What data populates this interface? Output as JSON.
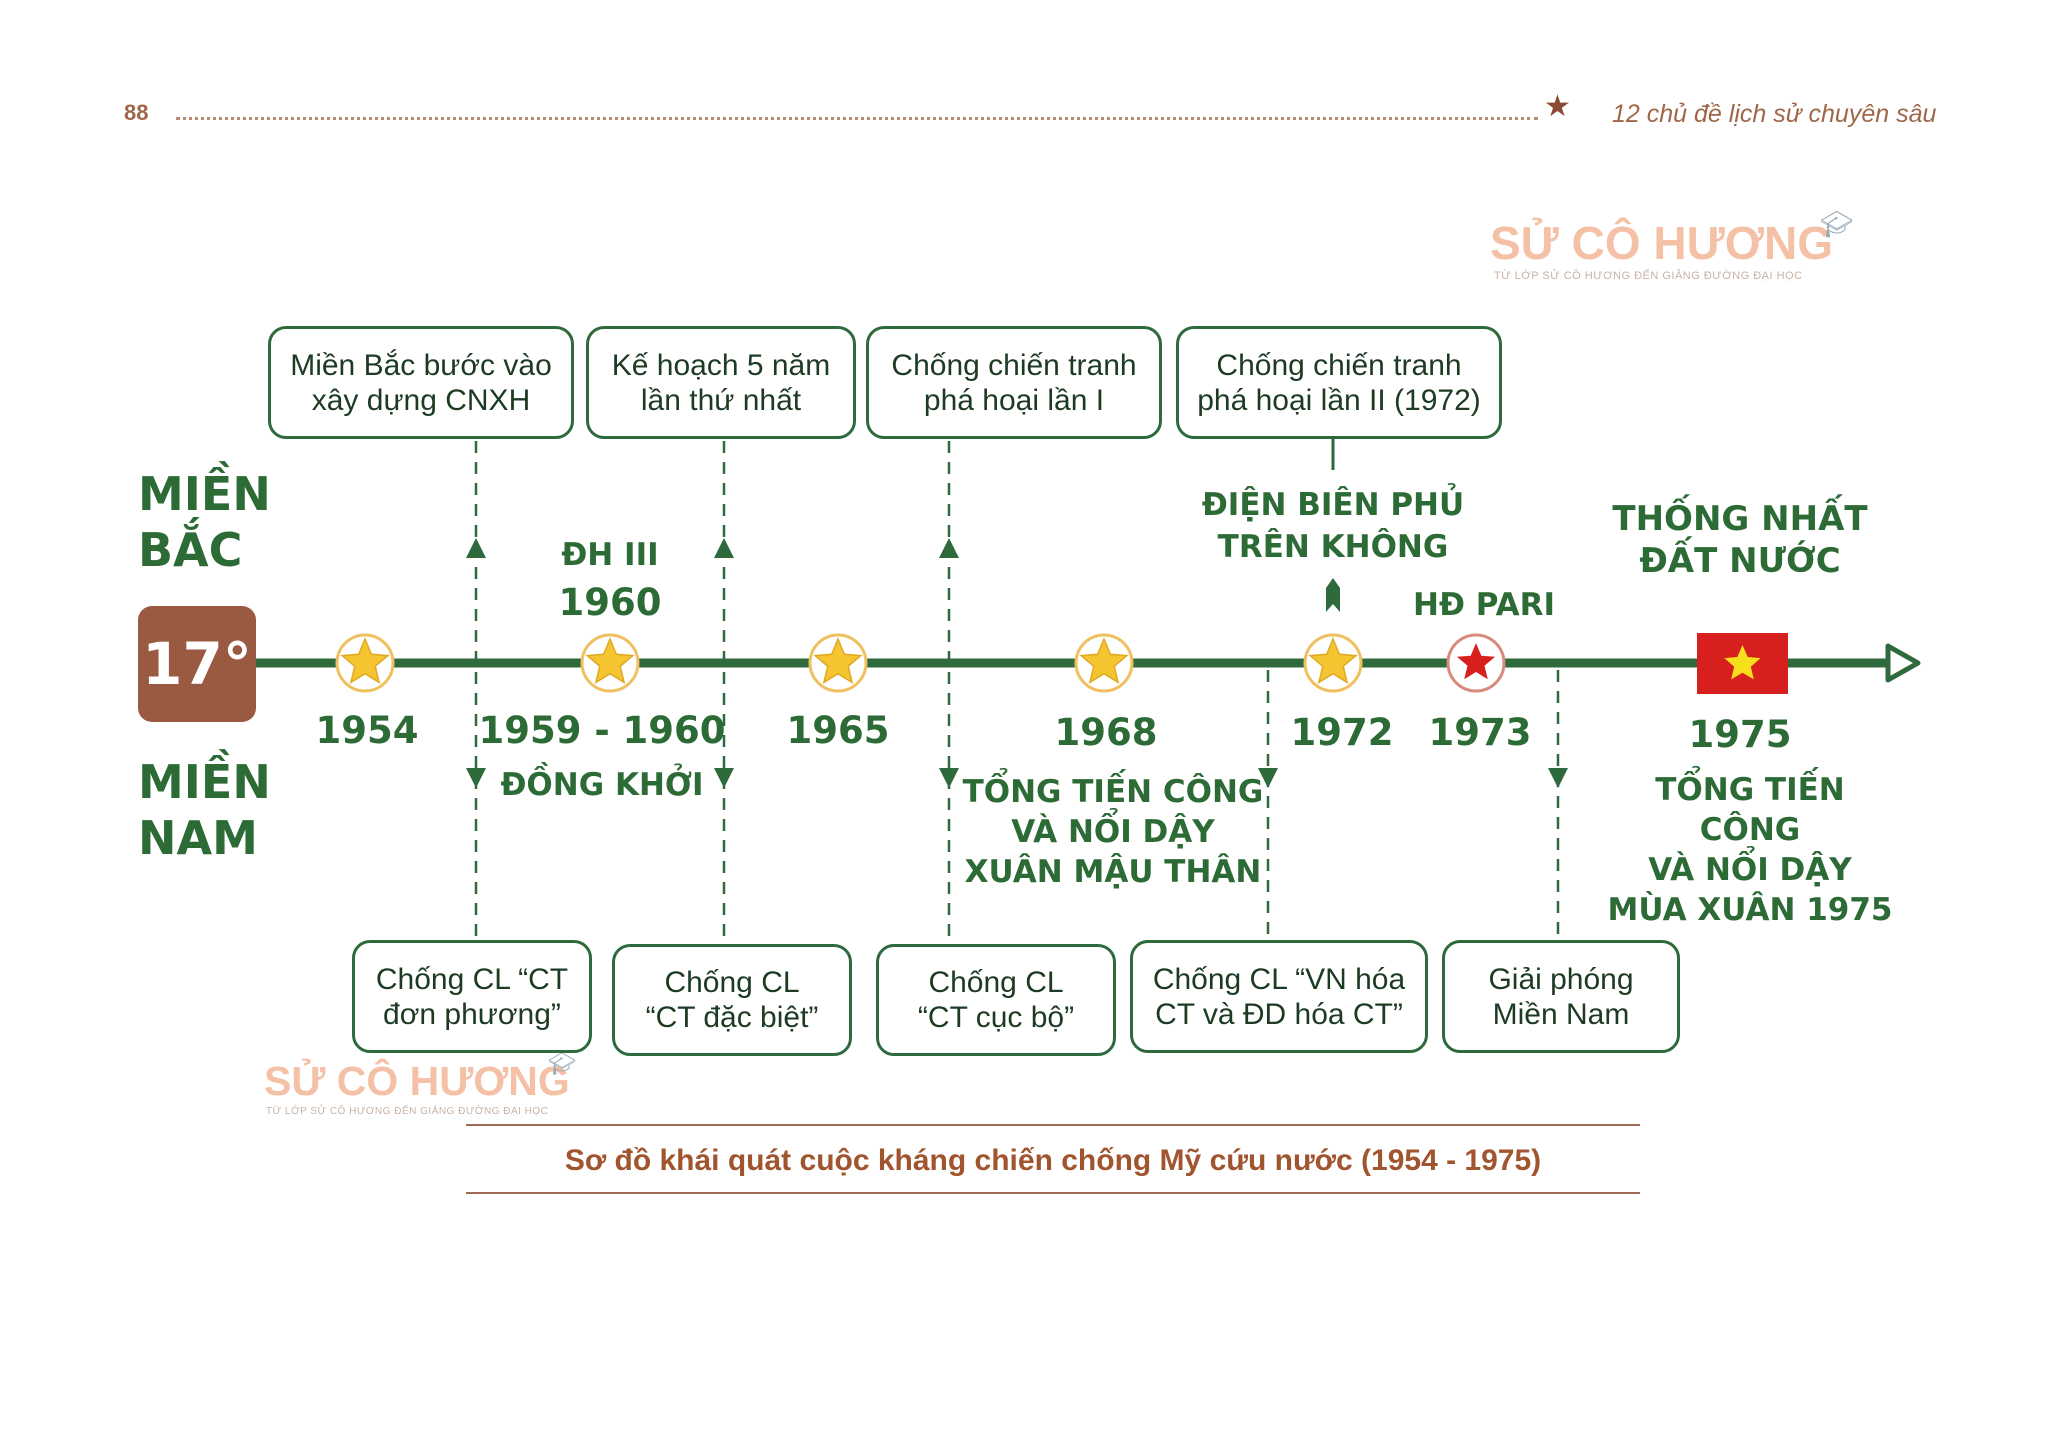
{
  "header": {
    "page_number": "88",
    "star_icon": "star-icon",
    "book_title": "12 chủ đề lịch sử chuyên sâu"
  },
  "watermark": {
    "brand": "SỬ CÔ HƯƠNG",
    "tagline": "TỪ LỚP SỬ CÔ HƯƠNG ĐẾN GIẢNG ĐƯỜNG ĐẠI HỌC",
    "icon": "graduation-cap-icon"
  },
  "colors": {
    "line_green": "#2e6a3c",
    "text_green": "#2c6a36",
    "brown": "#9a5a42",
    "star_gold": "#f4c531",
    "flag_red": "#d7201e"
  },
  "labels": {
    "north": "MIỀN\nBẮC",
    "south": "MIỀN\nNAM",
    "parallel": "17°"
  },
  "north_boxes": [
    "Miền Bắc bước vào\nxây dựng CNXH",
    "Kế hoạch 5 năm\nlần thứ nhất",
    "Chống chiến tranh\nphá hoại lần I",
    "Chống chiến tranh\nphá hoại lần II (1972)"
  ],
  "south_boxes": [
    "Chống CL “CT\nđơn phương”",
    "Chống CL\n“CT đặc biệt”",
    "Chống CL\n“CT cục bộ”",
    "Chống CL “VN hóa\nCT và ĐD hóa CT”",
    "Giải phóng\nMiền Nam"
  ],
  "years": [
    "1954",
    "1959 - 1960",
    "1965",
    "1968",
    "1972",
    "1973",
    "1975"
  ],
  "events_above": {
    "dh3": "ĐH III",
    "y1960": "1960",
    "dien_bien_phu": "ĐIỆN BIÊN PHỦ\nTRÊN KHÔNG",
    "hd_pari": "HĐ PARI",
    "thong_nhat": "THỐNG NHẤT\nĐẤT NƯỚC"
  },
  "events_below": {
    "dong_khoi": "ĐỒNG KHỞI",
    "tong_tien_cong_1968": "TỔNG TIẾN CÔNG\nVÀ NỔI DẬY\nXUÂN MẬU THÂN",
    "tong_tien_cong_1975": "TỔNG TIẾN CÔNG\nVÀ NỔI DẬY\nMÙA XUÂN 1975"
  },
  "caption": "Sơ đồ khái quát cuộc kháng chiến chống Mỹ cứu nước (1954 - 1975)"
}
